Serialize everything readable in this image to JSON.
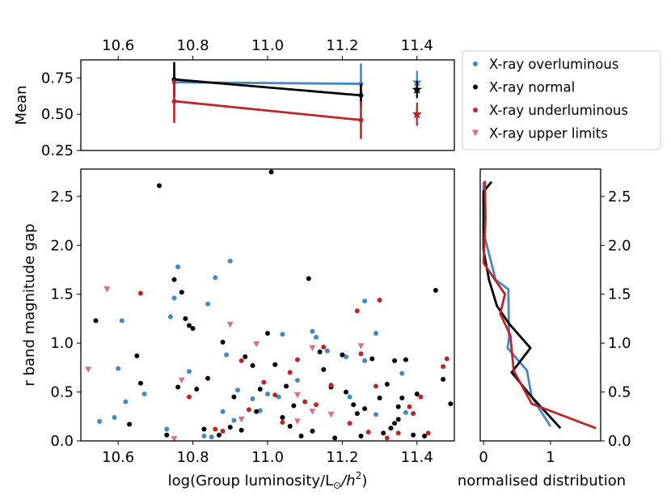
{
  "chart_data": [
    {
      "type": "line",
      "panel": "mean-panel",
      "ylabel": "Mean",
      "xlim": [
        10.5,
        11.5
      ],
      "ylim": [
        0.25,
        0.875
      ],
      "x_ticks": [
        10.6,
        10.8,
        11.0,
        11.2,
        11.4
      ],
      "x_tick_labels": [
        "10.6",
        "10.8",
        "11.0",
        "11.2",
        "11.4"
      ],
      "y_ticks": [
        0.25,
        0.5,
        0.75
      ],
      "y_tick_labels": [
        "0.25",
        "0.50",
        "0.75"
      ],
      "x_axis_position": "top",
      "series": [
        {
          "name": "X-ray overluminous",
          "color": "#4a87bd",
          "points": [
            {
              "x": 10.75,
              "y": 0.72,
              "err": 0.1
            },
            {
              "x": 11.25,
              "y": 0.71,
              "err": 0.14
            }
          ],
          "star": {
            "x": 11.4,
            "y": 0.72,
            "err": 0.08
          }
        },
        {
          "name": "X-ray normal",
          "color": "#000000",
          "points": [
            {
              "x": 10.75,
              "y": 0.74,
              "err": 0.12
            },
            {
              "x": 11.25,
              "y": 0.63,
              "err": 0.08
            }
          ],
          "star": {
            "x": 11.4,
            "y": 0.67,
            "err": 0.06
          }
        },
        {
          "name": "X-ray underluminous",
          "color": "#b8282a",
          "points": [
            {
              "x": 10.75,
              "y": 0.59,
              "err": 0.15
            },
            {
              "x": 11.25,
              "y": 0.46,
              "err": 0.13
            }
          ],
          "star": {
            "x": 11.4,
            "y": 0.5,
            "err": 0.08
          }
        }
      ]
    },
    {
      "type": "scatter",
      "panel": "scatter-panel",
      "xlabel": "log(Group luminosity/L",
      "xlabel_sub": "⊙",
      "xlabel_tail": "/h",
      "xlabel_sup": "2",
      "xlabel_close": ")",
      "ylabel": "r band magnitude gap",
      "xlim": [
        10.5,
        11.5
      ],
      "ylim": [
        0,
        2.78
      ],
      "x_ticks": [
        10.6,
        10.8,
        11.0,
        11.2,
        11.4
      ],
      "x_tick_labels": [
        "10.6",
        "10.8",
        "11.0",
        "11.2",
        "11.4"
      ],
      "y_ticks": [
        0,
        0.5,
        1.0,
        1.5,
        2.0,
        2.5
      ],
      "y_tick_labels": [
        "0.0",
        "0.5",
        "1.0",
        "1.5",
        "2.0",
        "2.5"
      ],
      "series": [
        {
          "name": "X-ray overluminous",
          "color": "#4a87bd",
          "marker": "circle",
          "points": [
            [
              10.55,
              0.2
            ],
            [
              10.59,
              0.24
            ],
            [
              10.6,
              0.74
            ],
            [
              10.61,
              1.23
            ],
            [
              10.62,
              0.4
            ],
            [
              10.67,
              0.48
            ],
            [
              10.73,
              0.12
            ],
            [
              10.74,
              1.27
            ],
            [
              10.75,
              1.46
            ],
            [
              10.76,
              1.78
            ],
            [
              10.79,
              0.71
            ],
            [
              10.83,
              0.05
            ],
            [
              10.84,
              1.4
            ],
            [
              10.85,
              0.04
            ],
            [
              10.86,
              1.67
            ],
            [
              10.88,
              0.3
            ],
            [
              10.9,
              1.84
            ],
            [
              10.89,
              0.88
            ],
            [
              10.91,
              0.21
            ],
            [
              10.92,
              0.52
            ],
            [
              10.96,
              0.43
            ],
            [
              10.98,
              0.31
            ],
            [
              11.0,
              0.48
            ],
            [
              11.03,
              0.45
            ],
            [
              11.04,
              1.09
            ],
            [
              11.08,
              0.62
            ],
            [
              11.12,
              1.12
            ],
            [
              11.13,
              1.06
            ],
            [
              11.16,
              0.92
            ],
            [
              11.21,
              0.86
            ],
            [
              11.22,
              0.45
            ],
            [
              11.26,
              0.82
            ],
            [
              11.26,
              1.43
            ],
            [
              11.29,
              1.1
            ],
            [
              11.36,
              0.69
            ],
            [
              11.37,
              0.29
            ],
            [
              11.29,
              0.27
            ]
          ]
        },
        {
          "name": "X-ray normal",
          "color": "#000000",
          "marker": "circle",
          "points": [
            [
              10.54,
              1.23
            ],
            [
              10.63,
              0.17
            ],
            [
              10.65,
              0.87
            ],
            [
              10.66,
              0.59
            ],
            [
              10.71,
              2.61
            ],
            [
              10.73,
              0.06
            ],
            [
              10.75,
              1.65
            ],
            [
              10.76,
              0.55
            ],
            [
              10.77,
              1.52
            ],
            [
              10.78,
              1.25
            ],
            [
              10.79,
              1.18
            ],
            [
              10.8,
              1.15
            ],
            [
              10.81,
              0.53
            ],
            [
              10.83,
              0.12
            ],
            [
              10.84,
              0.64
            ],
            [
              10.87,
              0.06
            ],
            [
              10.88,
              1.01
            ],
            [
              10.9,
              0.14
            ],
            [
              10.91,
              0.45
            ],
            [
              10.93,
              0.11
            ],
            [
              10.94,
              0.86
            ],
            [
              10.96,
              0.77
            ],
            [
              10.97,
              0.3
            ],
            [
              10.98,
              0.53
            ],
            [
              11.0,
              1.1
            ],
            [
              11.01,
              2.75
            ],
            [
              11.02,
              0.78
            ],
            [
              11.04,
              0.24
            ],
            [
              11.05,
              0.56
            ],
            [
              11.06,
              0.15
            ],
            [
              11.07,
              0.36
            ],
            [
              11.09,
              0.05
            ],
            [
              11.11,
              1.66
            ],
            [
              11.12,
              0.1
            ],
            [
              11.14,
              0.91
            ],
            [
              11.15,
              0.73
            ],
            [
              11.17,
              0.55
            ],
            [
              11.18,
              0.03
            ],
            [
              11.2,
              0.88
            ],
            [
              11.21,
              0.5
            ],
            [
              11.23,
              0.37
            ],
            [
              11.24,
              0.28
            ],
            [
              11.25,
              0.05
            ],
            [
              11.26,
              0.33
            ],
            [
              11.28,
              0.84
            ],
            [
              11.3,
              0.44
            ],
            [
              11.31,
              0.08
            ],
            [
              11.32,
              0.58
            ],
            [
              11.33,
              0.13
            ],
            [
              11.34,
              0.82
            ],
            [
              11.35,
              0.35
            ],
            [
              11.36,
              0.44
            ],
            [
              11.37,
              0.83
            ],
            [
              11.39,
              0.06
            ],
            [
              11.4,
              0.48
            ],
            [
              11.42,
              0.05
            ],
            [
              11.45,
              1.54
            ],
            [
              11.47,
              0.63
            ],
            [
              11.49,
              0.38
            ],
            [
              11.34,
              0.18
            ],
            [
              11.35,
              0.22
            ]
          ]
        },
        {
          "name": "X-ray underluminous",
          "color": "#b8282a",
          "marker": "circle",
          "points": [
            [
              10.66,
              1.51
            ],
            [
              10.79,
              0.45
            ],
            [
              10.86,
              0.12
            ],
            [
              10.88,
              0.1
            ],
            [
              10.93,
              0.82
            ],
            [
              10.95,
              0.32
            ],
            [
              10.99,
              0.6
            ],
            [
              11.02,
              0.47
            ],
            [
              11.04,
              0.19
            ],
            [
              11.06,
              0.7
            ],
            [
              11.08,
              0.83
            ],
            [
              11.1,
              0.4
            ],
            [
              11.13,
              0.37
            ],
            [
              11.15,
              0.96
            ],
            [
              11.17,
              0.57
            ],
            [
              11.22,
              0.18
            ],
            [
              11.24,
              1.33
            ],
            [
              11.25,
              0.89
            ],
            [
              11.27,
              0.09
            ],
            [
              11.29,
              0.56
            ],
            [
              11.3,
              1.44
            ],
            [
              11.32,
              0.03
            ],
            [
              11.35,
              0.08
            ],
            [
              11.38,
              0.35
            ],
            [
              11.39,
              0.28
            ],
            [
              11.41,
              0.45
            ],
            [
              11.43,
              0.08
            ],
            [
              11.47,
              0.76
            ],
            [
              11.48,
              0.84
            ]
          ]
        },
        {
          "name": "X-ray upper limits",
          "color": "#d4708f",
          "marker": "triangle-down",
          "points": [
            [
              10.52,
              0.73
            ],
            [
              10.57,
              1.55
            ],
            [
              10.75,
              0.02
            ],
            [
              10.77,
              0.62
            ],
            [
              10.9,
              1.19
            ],
            [
              10.93,
              0.22
            ],
            [
              10.97,
              0.99
            ],
            [
              11.08,
              0.47
            ],
            [
              11.08,
              0.2
            ],
            [
              11.12,
              0.95
            ],
            [
              11.17,
              0.27
            ],
            [
              11.25,
              0.97
            ],
            [
              11.12,
              0.3
            ]
          ]
        }
      ]
    },
    {
      "type": "line",
      "panel": "distribution-panel",
      "xlabel": "normalised distribution",
      "xlim": [
        -0.05,
        1.75
      ],
      "ylim": [
        0,
        2.78
      ],
      "x_ticks": [
        0,
        1
      ],
      "x_tick_labels": [
        "0",
        "1"
      ],
      "y_ticks": [
        0,
        0.5,
        1.0,
        1.5,
        2.0,
        2.5
      ],
      "y_tick_labels": [
        "0.0",
        "0.5",
        "1.0",
        "1.5",
        "2.0",
        "2.5"
      ],
      "y_axis_position": "right",
      "series": [
        {
          "name": "X-ray overluminous",
          "color": "#4a87bd",
          "points": [
            [
              0.0,
              2.65
            ],
            [
              0.0,
              2.2
            ],
            [
              0.02,
              2.08
            ],
            [
              0.18,
              1.65
            ],
            [
              0.37,
              1.55
            ],
            [
              0.38,
              1.05
            ],
            [
              0.36,
              0.95
            ],
            [
              0.65,
              0.72
            ],
            [
              0.72,
              0.45
            ],
            [
              1.0,
              0.15
            ]
          ]
        },
        {
          "name": "X-ray normal",
          "color": "#000000",
          "points": [
            [
              0.12,
              2.65
            ],
            [
              0.0,
              2.55
            ],
            [
              0.0,
              1.95
            ],
            [
              0.08,
              1.65
            ],
            [
              0.2,
              1.38
            ],
            [
              0.38,
              1.2
            ],
            [
              0.7,
              0.95
            ],
            [
              0.42,
              0.7
            ],
            [
              0.72,
              0.45
            ],
            [
              1.15,
              0.13
            ]
          ]
        },
        {
          "name": "X-ray underluminous",
          "color": "#b8282a",
          "points": [
            [
              0.02,
              2.66
            ],
            [
              0.03,
              2.28
            ],
            [
              0.0,
              1.82
            ],
            [
              0.32,
              1.5
            ],
            [
              0.25,
              1.3
            ],
            [
              0.4,
              1.08
            ],
            [
              0.45,
              0.72
            ],
            [
              0.72,
              0.38
            ],
            [
              1.68,
              0.13
            ]
          ]
        }
      ]
    }
  ],
  "legend": {
    "items": [
      {
        "label": "X-ray overluminous",
        "color": "#4a87bd",
        "marker": "circle"
      },
      {
        "label": "X-ray normal",
        "color": "#000000",
        "marker": "circle"
      },
      {
        "label": "X-ray underluminous",
        "color": "#b8282a",
        "marker": "circle"
      },
      {
        "label": "X-ray upper limits",
        "color": "#d4708f",
        "marker": "triangle-down"
      }
    ]
  }
}
